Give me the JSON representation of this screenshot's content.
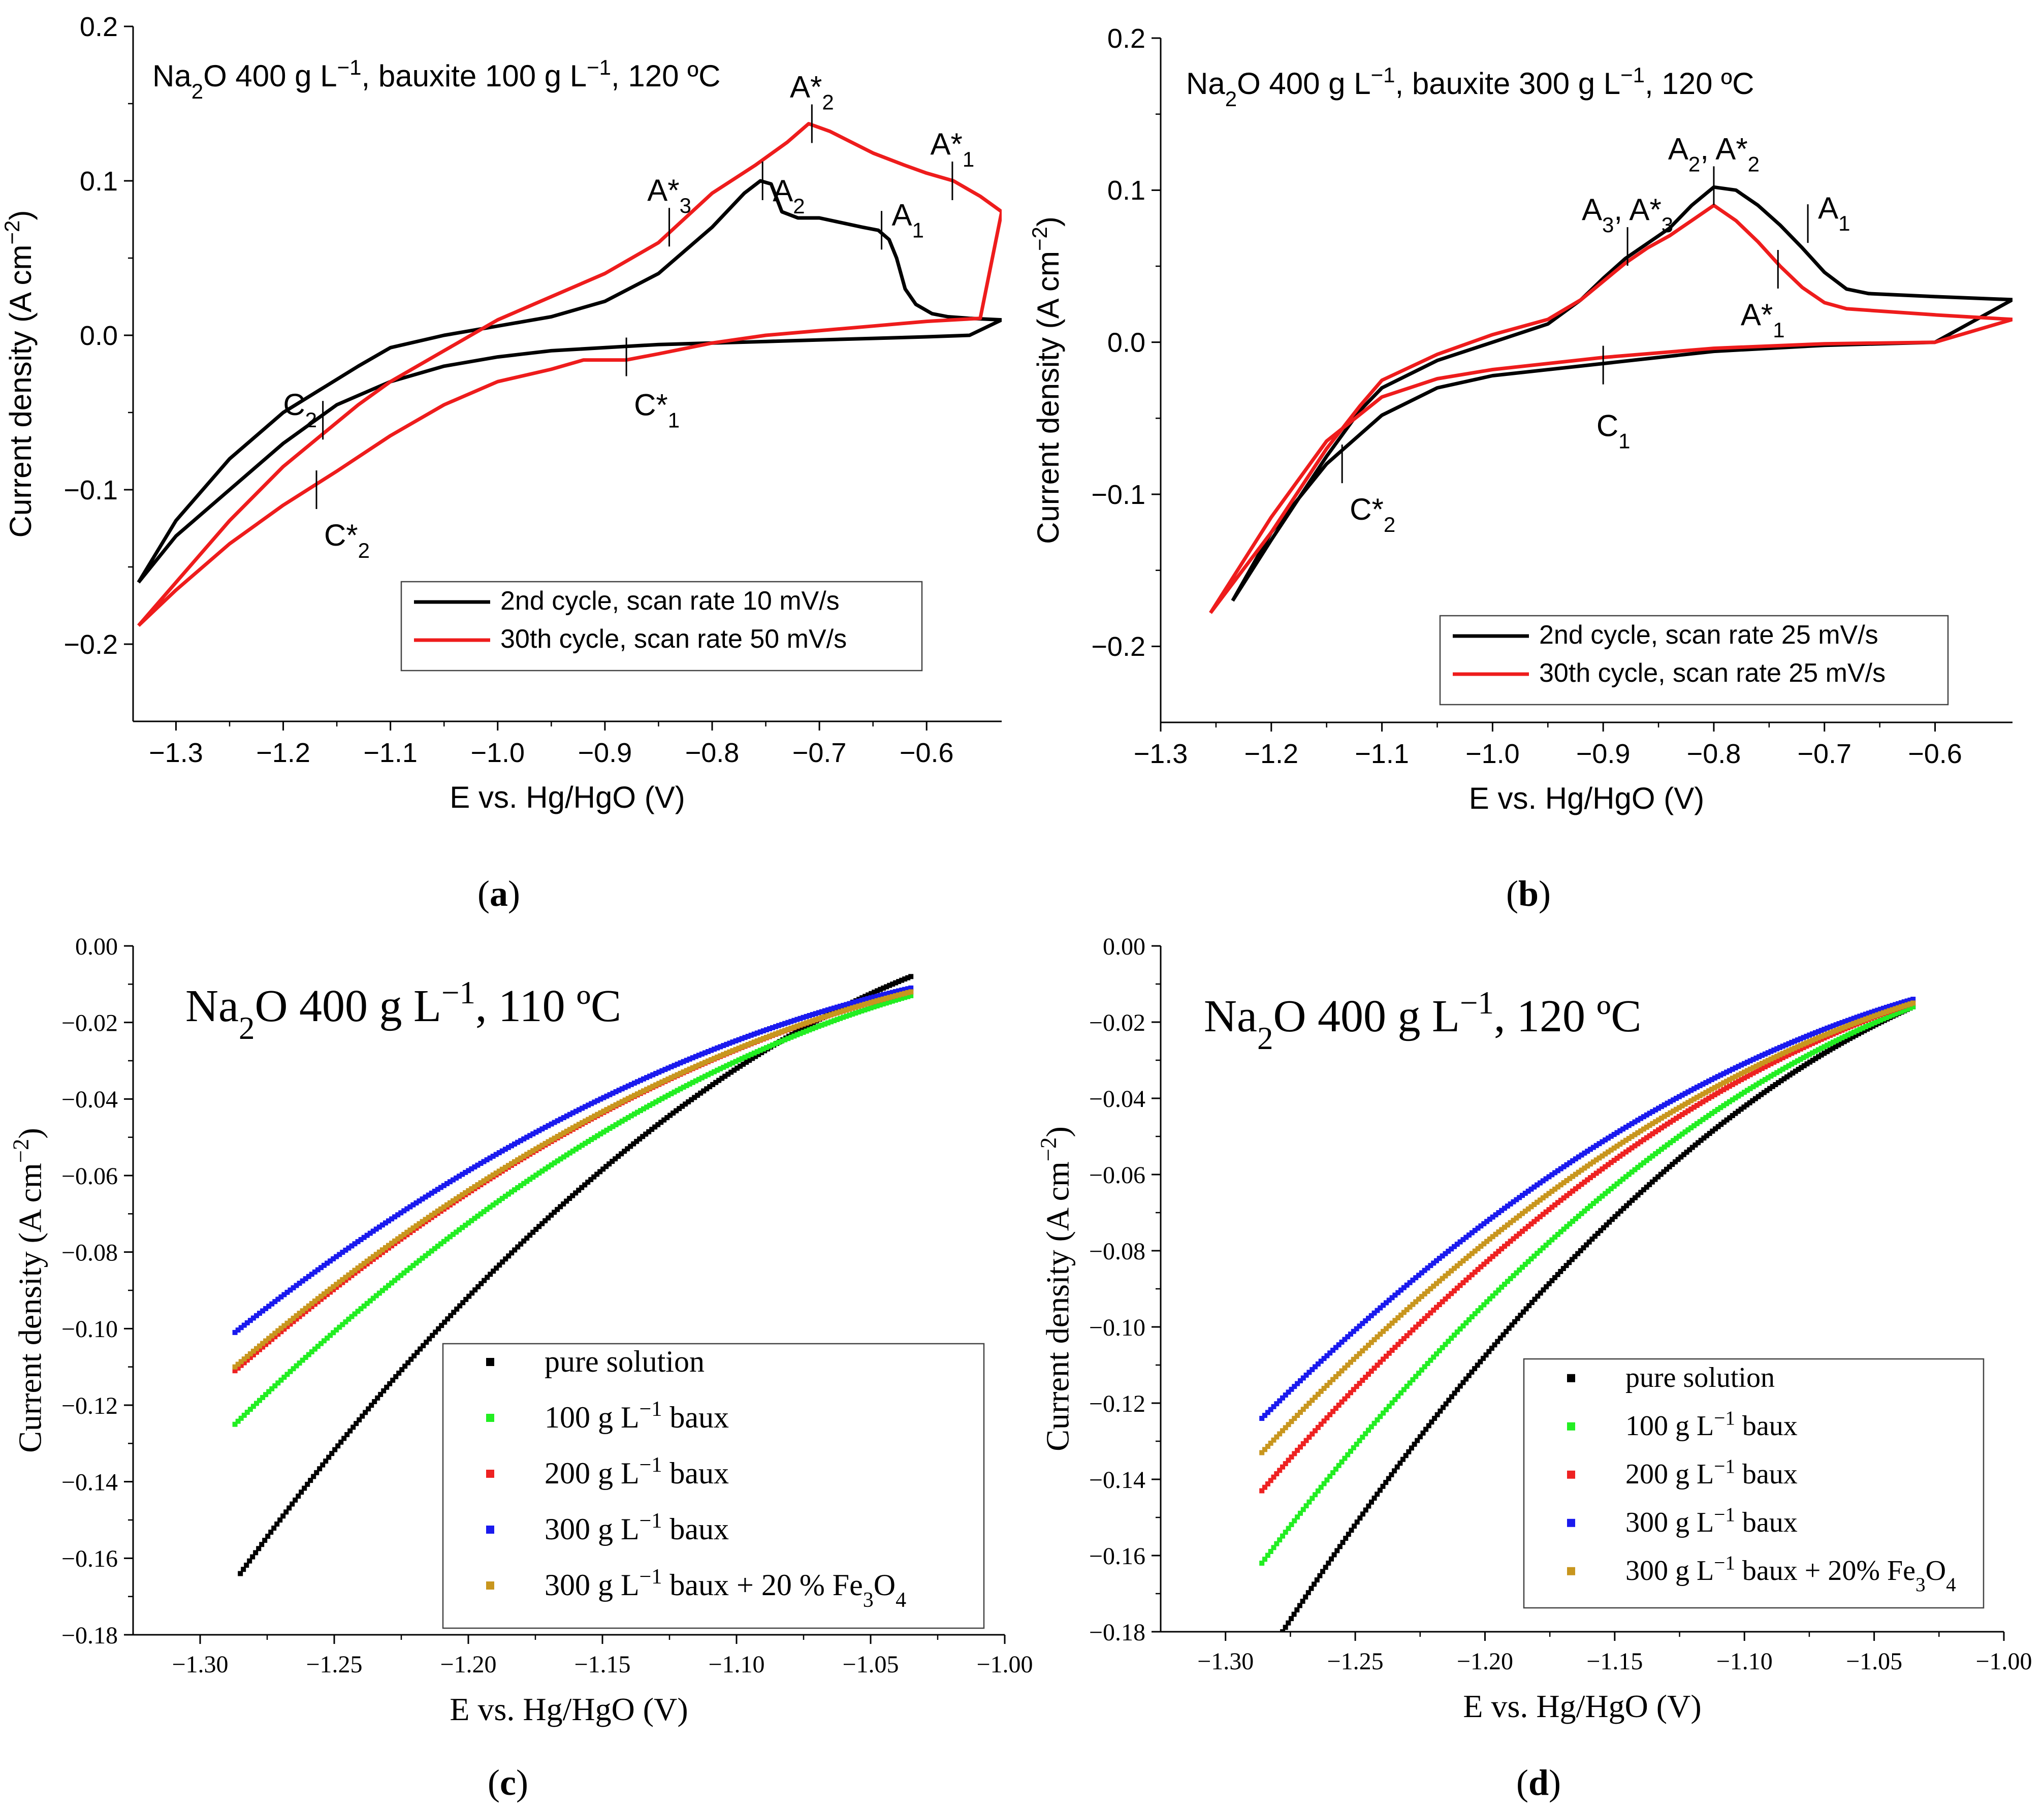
{
  "chart_data": [
    {
      "id": "a",
      "type": "line",
      "panel_label": "a",
      "title": "Na₂O 400 g L⁻¹, bauxite 100 g L⁻¹, 120 ºC",
      "xlabel": "E vs. Hg/HgO (V)",
      "ylabel": "Current density (A cm⁻²)",
      "xlim": [
        -1.34,
        -0.53
      ],
      "ylim": [
        -0.25,
        0.2
      ],
      "xticks": [
        -1.3,
        -1.2,
        -1.1,
        -1.0,
        -0.9,
        -0.8,
        -0.7,
        -0.6
      ],
      "xtick_labels": [
        "−1.3",
        "−1.2",
        "−1.1",
        "−1.0",
        "−0.9",
        "−0.8",
        "−0.7",
        "−0.6"
      ],
      "yticks": [
        -0.2,
        -0.1,
        0.0,
        0.1,
        0.2
      ],
      "ytick_labels": [
        "−0.2",
        "−0.1",
        "0.0",
        "0.1",
        "0.2"
      ],
      "legend": "bottom-right",
      "series": [
        {
          "name": "2nd cycle, scan rate 10 mV/s",
          "color": "#000000",
          "x": [
            -1.335,
            -1.3,
            -1.25,
            -1.2,
            -1.165,
            -1.13,
            -1.1,
            -1.05,
            -1.0,
            -0.95,
            -0.9,
            -0.85,
            -0.8,
            -0.77,
            -0.755,
            -0.745,
            -0.735,
            -0.72,
            -0.7,
            -0.68,
            -0.66,
            -0.645,
            -0.635,
            -0.628,
            -0.62,
            -0.61,
            -0.595,
            -0.58,
            -0.56,
            -0.53,
            -0.56,
            -0.6,
            -0.65,
            -0.7,
            -0.75,
            -0.8,
            -0.85,
            -0.9,
            -0.95,
            -1.0,
            -1.05,
            -1.1,
            -1.15,
            -1.2,
            -1.25,
            -1.3,
            -1.335
          ],
          "y": [
            -0.16,
            -0.12,
            -0.08,
            -0.05,
            -0.035,
            -0.02,
            -0.008,
            0.0,
            0.006,
            0.012,
            0.022,
            0.04,
            0.07,
            0.092,
            0.1,
            0.098,
            0.08,
            0.076,
            0.076,
            0.073,
            0.07,
            0.068,
            0.062,
            0.05,
            0.03,
            0.02,
            0.014,
            0.012,
            0.011,
            0.01,
            0.0,
            -0.001,
            -0.002,
            -0.003,
            -0.004,
            -0.005,
            -0.006,
            -0.008,
            -0.01,
            -0.014,
            -0.02,
            -0.03,
            -0.045,
            -0.07,
            -0.1,
            -0.13,
            -0.16
          ]
        },
        {
          "name": "30th cycle, scan rate 50 mV/s",
          "color": "#ee1c1c",
          "x": [
            -1.335,
            -1.3,
            -1.25,
            -1.2,
            -1.165,
            -1.13,
            -1.1,
            -1.05,
            -1.0,
            -0.95,
            -0.9,
            -0.85,
            -0.8,
            -0.76,
            -0.73,
            -0.71,
            -0.69,
            -0.67,
            -0.65,
            -0.62,
            -0.6,
            -0.575,
            -0.55,
            -0.53,
            -0.55,
            -0.6,
            -0.65,
            -0.7,
            -0.75,
            -0.8,
            -0.85,
            -0.88,
            -0.92,
            -0.95,
            -1.0,
            -1.05,
            -1.1,
            -1.15,
            -1.2,
            -1.25,
            -1.3,
            -1.335
          ],
          "y": [
            -0.188,
            -0.16,
            -0.12,
            -0.085,
            -0.065,
            -0.045,
            -0.03,
            -0.01,
            0.01,
            0.025,
            0.04,
            0.06,
            0.092,
            0.11,
            0.125,
            0.137,
            0.132,
            0.125,
            0.118,
            0.11,
            0.105,
            0.1,
            0.09,
            0.08,
            0.011,
            0.009,
            0.006,
            0.003,
            0.0,
            -0.005,
            -0.012,
            -0.016,
            -0.016,
            -0.022,
            -0.03,
            -0.045,
            -0.065,
            -0.088,
            -0.11,
            -0.135,
            -0.165,
            -0.188
          ]
        }
      ],
      "annotations": [
        {
          "base": "A*",
          "sub": "2",
          "x": -0.707,
          "y": 0.137
        },
        {
          "base": "A*",
          "sub": "1",
          "x": -0.576,
          "y": 0.1
        },
        {
          "base": "A*",
          "sub": "3",
          "x": -0.84,
          "y": 0.07
        },
        {
          "base": "A",
          "sub": "2",
          "x": -0.753,
          "y": 0.1
        },
        {
          "base": "A",
          "sub": "1",
          "x": -0.642,
          "y": 0.068
        },
        {
          "base": "C",
          "sub": "2",
          "x": -1.163,
          "y": -0.055
        },
        {
          "base": "C*",
          "sub": "1",
          "x": -0.88,
          "y": -0.014
        },
        {
          "base": "C*",
          "sub": "2",
          "x": -1.169,
          "y": -0.1
        }
      ]
    },
    {
      "id": "b",
      "type": "line",
      "panel_label": "b",
      "title": "Na₂O 400 g L⁻¹, bauxite 300 g L⁻¹, 120 ºC",
      "xlabel": "E vs. Hg/HgO (V)",
      "ylabel": "Current density (A cm⁻²)",
      "xlim": [
        -1.3,
        -0.53
      ],
      "ylim": [
        -0.25,
        0.2
      ],
      "xticks": [
        -1.3,
        -1.2,
        -1.1,
        -1.0,
        -0.9,
        -0.8,
        -0.7,
        -0.6
      ],
      "xtick_labels": [
        "−1.3",
        "−1.2",
        "−1.1",
        "−1.0",
        "−0.9",
        "−0.8",
        "−0.7",
        "−0.6"
      ],
      "yticks": [
        -0.2,
        -0.1,
        0.0,
        0.1,
        0.2
      ],
      "ytick_labels": [
        "−0.2",
        "−0.1",
        "0.0",
        "0.1",
        "0.2"
      ],
      "legend": "bottom-right",
      "series": [
        {
          "name": "2nd cycle, scan rate 25 mV/s",
          "color": "#000000",
          "x": [
            -1.235,
            -1.2,
            -1.15,
            -1.12,
            -1.1,
            -1.05,
            -1.0,
            -0.95,
            -0.92,
            -0.9,
            -0.88,
            -0.86,
            -0.84,
            -0.82,
            -0.8,
            -0.78,
            -0.76,
            -0.74,
            -0.72,
            -0.7,
            -0.68,
            -0.66,
            -0.6,
            -0.53,
            -0.6,
            -0.7,
            -0.8,
            -0.9,
            -1.0,
            -1.05,
            -1.1,
            -1.15,
            -1.2,
            -1.235
          ],
          "y": [
            -0.17,
            -0.13,
            -0.075,
            -0.045,
            -0.03,
            -0.012,
            0.0,
            0.012,
            0.028,
            0.042,
            0.055,
            0.065,
            0.075,
            0.09,
            0.102,
            0.1,
            0.09,
            0.077,
            0.062,
            0.046,
            0.035,
            0.032,
            0.03,
            0.028,
            0.0,
            -0.002,
            -0.006,
            -0.014,
            -0.022,
            -0.03,
            -0.048,
            -0.08,
            -0.125,
            -0.17
          ]
        },
        {
          "name": "30th cycle, scan rate 25 mV/s",
          "color": "#ee1c1c",
          "x": [
            -1.255,
            -1.2,
            -1.15,
            -1.12,
            -1.1,
            -1.05,
            -1.0,
            -0.95,
            -0.92,
            -0.9,
            -0.88,
            -0.86,
            -0.84,
            -0.82,
            -0.8,
            -0.78,
            -0.76,
            -0.74,
            -0.72,
            -0.7,
            -0.68,
            -0.6,
            -0.53,
            -0.6,
            -0.7,
            -0.8,
            -0.9,
            -1.0,
            -1.05,
            -1.1,
            -1.15,
            -1.2,
            -1.255
          ],
          "y": [
            -0.178,
            -0.125,
            -0.07,
            -0.042,
            -0.025,
            -0.008,
            0.005,
            0.015,
            0.028,
            0.04,
            0.052,
            0.062,
            0.07,
            0.08,
            0.09,
            0.08,
            0.066,
            0.05,
            0.036,
            0.026,
            0.022,
            0.018,
            0.015,
            0.0,
            -0.001,
            -0.004,
            -0.01,
            -0.018,
            -0.024,
            -0.036,
            -0.065,
            -0.115,
            -0.178
          ]
        }
      ],
      "annotations": [
        {
          "base": "A₂, A*",
          "sub": "2",
          "x": -0.8,
          "y": 0.103
        },
        {
          "base": "A₃, A*",
          "sub": "3",
          "x": -0.878,
          "y": 0.063
        },
        {
          "base": "A",
          "sub": "1",
          "x": -0.715,
          "y": 0.078
        },
        {
          "base": "A*",
          "sub": "1",
          "x": -0.742,
          "y": 0.048
        },
        {
          "base": "C",
          "sub": "1",
          "x": -0.9,
          "y": -0.015
        },
        {
          "base": "C*",
          "sub": "2",
          "x": -1.136,
          "y": -0.08
        }
      ]
    },
    {
      "id": "c",
      "type": "scatter",
      "panel_label": "c",
      "title": "Na₂O 400 g L⁻¹, 110 ºC",
      "xlabel": "E vs. Hg/HgO (V)",
      "ylabel": "Current density (A cm⁻²)",
      "xlim": [
        -1.325,
        -1.0
      ],
      "ylim": [
        -0.18,
        0.0
      ],
      "xticks": [
        -1.3,
        -1.25,
        -1.2,
        -1.15,
        -1.1,
        -1.05,
        -1.0
      ],
      "xtick_labels": [
        "−1.30",
        "−1.25",
        "−1.20",
        "−1.15",
        "−1.10",
        "−1.05",
        "−1.00"
      ],
      "yticks": [
        -0.18,
        -0.16,
        -0.14,
        -0.12,
        -0.1,
        -0.08,
        -0.06,
        -0.04,
        -0.02,
        0.0
      ],
      "ytick_labels": [
        "−0.18",
        "−0.16",
        "−0.14",
        "−0.12",
        "−0.10",
        "−0.08",
        "−0.06",
        "−0.04",
        "−0.02",
        "0.00"
      ],
      "legend": "bottom-right",
      "series": [
        {
          "name": "pure solution",
          "color": "#000000",
          "x": [
            -1.285,
            -1.035
          ],
          "y": [
            -0.164,
            -0.008
          ]
        },
        {
          "name": "100 g L⁻¹ baux",
          "color": "#22ee22",
          "x": [
            -1.287,
            -1.035
          ],
          "y": [
            -0.125,
            -0.013
          ]
        },
        {
          "name": "200 g L⁻¹ baux",
          "color": "#ee2222",
          "x": [
            -1.287,
            -1.035
          ],
          "y": [
            -0.111,
            -0.012
          ]
        },
        {
          "name": "300 g L⁻¹ baux",
          "color": "#1a1aee",
          "x": [
            -1.287,
            -1.035
          ],
          "y": [
            -0.101,
            -0.011
          ]
        },
        {
          "name": "300 g L⁻¹ baux + 20 % Fe₃O₄",
          "color": "#c8961e",
          "x": [
            -1.287,
            -1.035
          ],
          "y": [
            -0.11,
            -0.012
          ]
        }
      ]
    },
    {
      "id": "d",
      "type": "scatter",
      "panel_label": "d",
      "title": "Na₂O 400 g L⁻¹, 120 ºC",
      "xlabel": "E vs. Hg/HgO (V)",
      "ylabel": "Current density (A cm⁻²)",
      "xlim": [
        -1.325,
        -1.0
      ],
      "ylim": [
        -0.18,
        0.0
      ],
      "xticks": [
        -1.3,
        -1.25,
        -1.2,
        -1.15,
        -1.1,
        -1.05,
        -1.0
      ],
      "xtick_labels": [
        "−1.30",
        "−1.25",
        "−1.20",
        "−1.15",
        "−1.10",
        "−1.05",
        "−1.00"
      ],
      "yticks": [
        -0.18,
        -0.16,
        -0.14,
        -0.12,
        -0.1,
        -0.08,
        -0.06,
        -0.04,
        -0.02,
        0.0
      ],
      "ytick_labels": [
        "−0.18",
        "−0.16",
        "−0.14",
        "−0.12",
        "−0.10",
        "−0.08",
        "−0.06",
        "−0.04",
        "−0.02",
        "0.00"
      ],
      "legend": "bottom-right",
      "series": [
        {
          "name": "pure solution",
          "color": "#000000",
          "x": [
            -1.278,
            -1.035
          ],
          "y": [
            -0.18,
            -0.016
          ]
        },
        {
          "name": "100 g L⁻¹ baux",
          "color": "#22ee22",
          "x": [
            -1.286,
            -1.035
          ],
          "y": [
            -0.162,
            -0.016
          ]
        },
        {
          "name": "200 g L⁻¹ baux",
          "color": "#ee2222",
          "x": [
            -1.286,
            -1.035
          ],
          "y": [
            -0.143,
            -0.015
          ]
        },
        {
          "name": "300 g L⁻¹ baux",
          "color": "#1a1aee",
          "x": [
            -1.286,
            -1.035
          ],
          "y": [
            -0.124,
            -0.014
          ]
        },
        {
          "name": "300 g L⁻¹ baux + 20% Fe₃O₄",
          "color": "#c8961e",
          "x": [
            -1.286,
            -1.035
          ],
          "y": [
            -0.133,
            -0.015
          ]
        }
      ]
    }
  ]
}
